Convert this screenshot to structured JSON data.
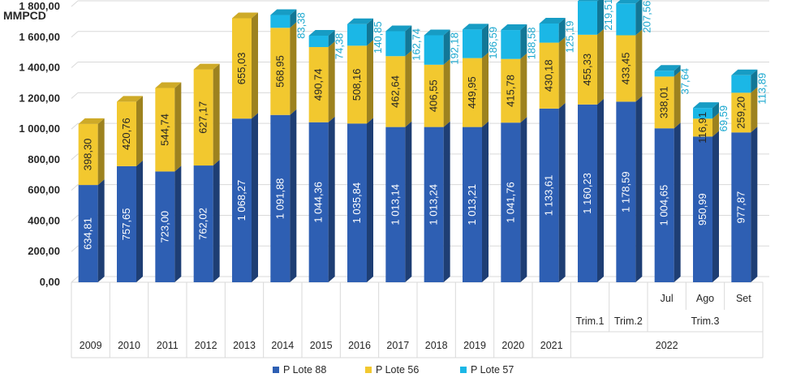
{
  "chart_data": {
    "type": "bar",
    "stacked": true,
    "three_d": true,
    "ylabel": "MMPCD",
    "ylim": [
      0,
      1800
    ],
    "y_ticks": [
      "0,00",
      "200,00",
      "400,00",
      "600,00",
      "800,00",
      "1 000,00",
      "1 200,00",
      "1 400,00",
      "1 600,00",
      "1 800,00"
    ],
    "categories": [
      "2009",
      "2010",
      "2011",
      "2012",
      "2013",
      "2014",
      "2015",
      "2016",
      "2017",
      "2018",
      "2019",
      "2020",
      "2021",
      "Trim.1",
      "Trim.2",
      "Jul",
      "Ago",
      "Set"
    ],
    "category_groups": [
      {
        "label": "Trim.3",
        "from": 15,
        "to": 17
      },
      {
        "label": "2022",
        "from": 13,
        "to": 17
      }
    ],
    "series": [
      {
        "name": "P Lote 88",
        "color": "#2e5fb3",
        "values": [
          634.81,
          757.65,
          723.0,
          762.02,
          1068.27,
          1091.88,
          1044.36,
          1035.84,
          1013.14,
          1013.24,
          1013.21,
          1041.76,
          1133.61,
          1160.23,
          1178.59,
          1004.65,
          950.99,
          977.87
        ],
        "labels": [
          "634,81",
          "757,65",
          "723,00",
          "762,02",
          "1 068,27",
          "1 091,88",
          "1 044,36",
          "1 035,84",
          "1 013,14",
          "1 013,24",
          "1 013,21",
          "1 041,76",
          "1 133,61",
          "1 160,23",
          "1 178,59",
          "1 004,65",
          "950,99",
          "977,87"
        ]
      },
      {
        "name": "P Lote 56",
        "color": "#f2c82f",
        "values": [
          398.3,
          420.76,
          544.74,
          627.17,
          655.03,
          568.95,
          490.74,
          508.16,
          462.64,
          406.55,
          449.95,
          415.78,
          430.18,
          455.33,
          433.45,
          338.01,
          116.91,
          259.2
        ],
        "labels": [
          "398,30",
          "420,76",
          "544,74",
          "627,17",
          "655,03",
          "568,95",
          "490,74",
          "508,16",
          "462,64",
          "406,55",
          "449,95",
          "415,78",
          "430,18",
          "455,33",
          "433,45",
          "338,01",
          "116,91",
          "259,20"
        ]
      },
      {
        "name": "P Lote 57",
        "color": "#1bb7e6",
        "values": [
          0,
          0,
          0,
          0,
          0,
          83.38,
          74.38,
          140.85,
          162.74,
          192.18,
          186.59,
          188.58,
          125.19,
          219.51,
          207.56,
          37.64,
          69.59,
          113.89
        ],
        "labels": [
          "",
          "",
          "",
          "",
          "",
          "83,38",
          "74,38",
          "140,85",
          "162,74",
          "192,18",
          "186,59",
          "188,58",
          "125,19",
          "219,51",
          "207,56",
          "37,64",
          "69,59",
          "113,89"
        ]
      }
    ],
    "legend_position": "bottom"
  }
}
